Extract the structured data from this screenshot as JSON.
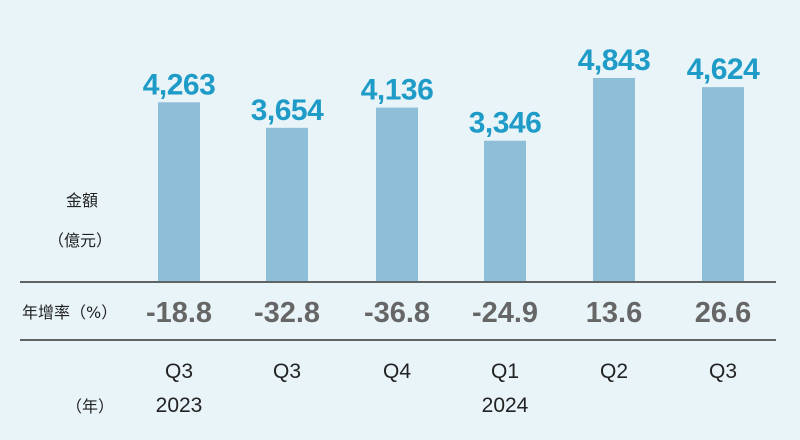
{
  "colors": {
    "background": "#e9f4f9",
    "bar": "#8ebed8",
    "value_label": "#1e9bc6",
    "growth_label": "#666666",
    "text": "#222222",
    "divider": "#333333"
  },
  "labels": {
    "amount_line1": "金額",
    "amount_line2": "（億元）",
    "growth_row": "年增率（%）",
    "year_axis": "（年）"
  },
  "chart_data": {
    "type": "bar",
    "categories": [
      "Q3",
      "Q3",
      "Q4",
      "Q1",
      "Q2",
      "Q3"
    ],
    "year_labels": [
      "2023",
      "",
      "",
      "2024",
      "",
      ""
    ],
    "values": [
      4263,
      3654,
      4136,
      3346,
      4843,
      4624
    ],
    "value_labels": [
      "4,263",
      "3,654",
      "4,136",
      "3,346",
      "4,843",
      "4,624"
    ],
    "yoy_growth": [
      -18.8,
      -32.8,
      -36.8,
      -24.9,
      13.6,
      26.6
    ],
    "yoy_growth_labels": [
      "-18.8",
      "-32.8",
      "-36.8",
      "-24.9",
      "13.6",
      "26.6"
    ],
    "ylim": [
      0,
      5200
    ],
    "grid": false
  }
}
